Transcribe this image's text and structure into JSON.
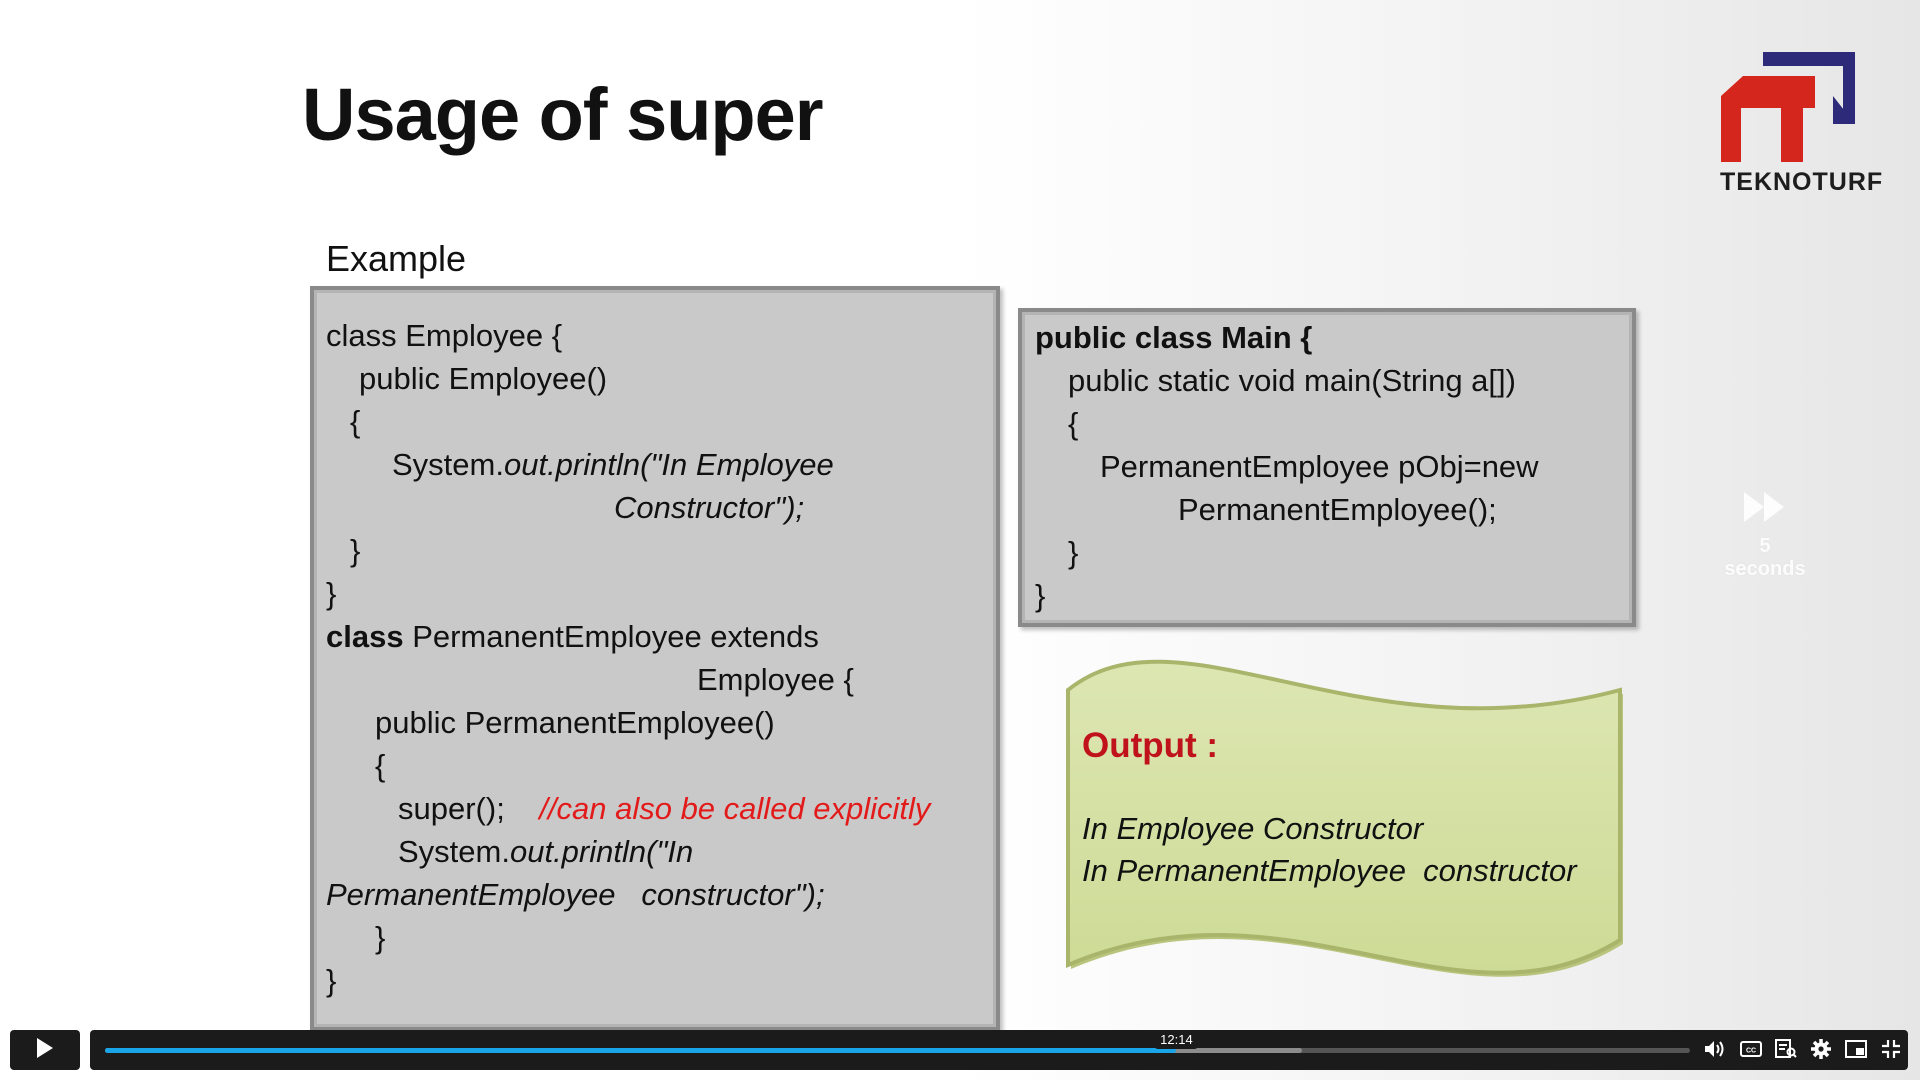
{
  "slide": {
    "title": "Usage of super",
    "brand": "TEKNOTURF",
    "example_label": "Example",
    "left_code": {
      "l1": "class Employee {",
      "l2": "public Employee()",
      "l3": "{",
      "l4a": "System.",
      "l4b": "out.println(\"In Employee",
      "l5": "Constructor\");",
      "l6": "}",
      "l7": "}",
      "l8a": "class",
      "l8b": " PermanentEmployee extends",
      "l9": "Employee {",
      "l10": "public PermanentEmployee()",
      "l11": "{",
      "l12a": "super();",
      "l12b": "//can also be called explicitly",
      "l13a": "System.",
      "l13b": "out.println(\"In",
      "l14": "PermanentEmployee   constructor\");",
      "l15": "}",
      "l16": "}"
    },
    "right_code": {
      "l1": "public class Main {",
      "l2": "public static void main(String a[])",
      "l3": "{",
      "l4": "PermanentEmployee pObj=new",
      "l5": "PermanentEmployee();",
      "l6": "}",
      "l7": "}"
    },
    "output": {
      "title": "Output :",
      "line1": "In Employee Constructor",
      "line2": "In PermanentEmployee  constructor"
    },
    "skip_label": "5 seconds"
  },
  "player": {
    "hover_time": "12:14",
    "progress_fraction": 0.676,
    "buffered_fraction": 0.755
  },
  "colors": {
    "accent": "#1aa5e8",
    "code_box": "#c9c9c9",
    "output_fill": "#d5dfa4",
    "output_title": "#c0121a",
    "comment": "#e31a1a",
    "logo_red": "#d4261d",
    "logo_navy": "#2d2a7a"
  }
}
